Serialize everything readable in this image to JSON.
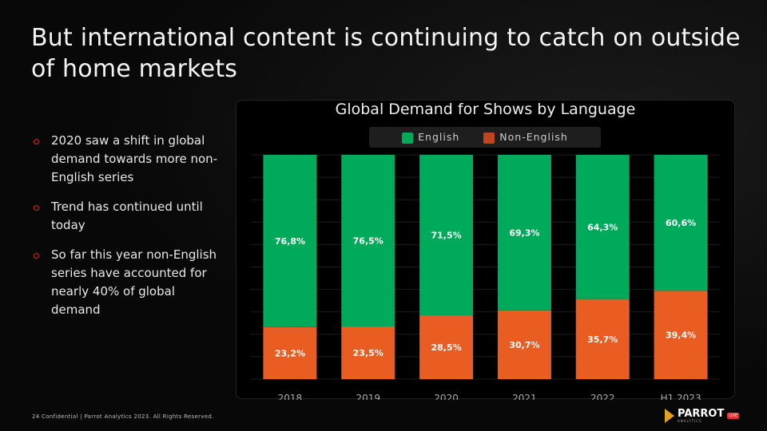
{
  "title": "But international content is continuing to catch on outside of home markets",
  "bullets": [
    "2020 saw a shift in global demand towards more non-English series",
    "Trend has continued until today",
    "So far this year non-English series have accounted for nearly 40% of global demand"
  ],
  "footer": "24 Confidential | Parrot Analytics 2023. All Rights Reserved.",
  "logo": {
    "name": "PARROT",
    "sub": "ANALYTICS",
    "badge": "LIVE"
  },
  "chart_data": {
    "type": "bar",
    "stacked": true,
    "title": "Global Demand for Shows by Language",
    "categories": [
      "2018",
      "2019",
      "2020",
      "2021",
      "2022",
      "H1 2023"
    ],
    "series": [
      {
        "name": "English",
        "color": "#00aa5b",
        "values": [
          76.8,
          76.5,
          71.5,
          69.3,
          64.3,
          60.6
        ],
        "labels": [
          "76,8%",
          "76,5%",
          "71,5%",
          "69,3%",
          "64,3%",
          "60,6%"
        ]
      },
      {
        "name": "Non-English",
        "color": "#ea5d22",
        "legend_color": "#c0451c",
        "values": [
          23.2,
          23.5,
          28.5,
          30.7,
          35.7,
          39.4
        ],
        "labels": [
          "23,2%",
          "23,5%",
          "28,5%",
          "30,7%",
          "35,7%",
          "39,4%"
        ]
      }
    ],
    "ylim": [
      0,
      100
    ],
    "grid": true,
    "legend": "top"
  }
}
